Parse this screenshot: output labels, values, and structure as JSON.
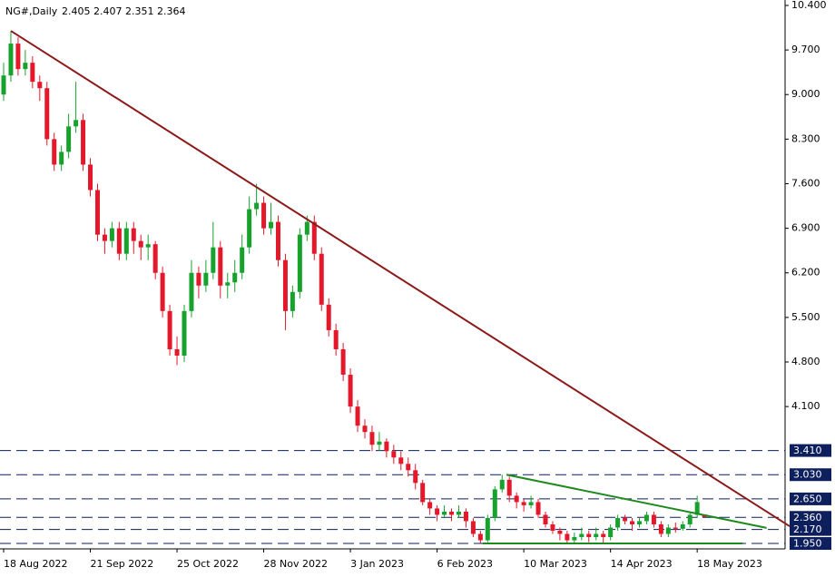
{
  "chart_data": {
    "type": "candlestick",
    "title": "NG#,Daily",
    "up_color": "#17a22e",
    "down_color": "#e3182a",
    "open": [
      9.0,
      9.3,
      9.8,
      9.4,
      9.5,
      9.2,
      9.1,
      8.3,
      7.9,
      8.1,
      8.5,
      8.6,
      7.9,
      7.5,
      6.8,
      6.7,
      6.9,
      6.5,
      6.9,
      6.7,
      6.6,
      6.65,
      6.2,
      5.6,
      5.0,
      4.9,
      5.6,
      6.2,
      6.0,
      6.2,
      6.6,
      6.0,
      6.05,
      6.2,
      6.6,
      7.2,
      7.3,
      6.9,
      7.0,
      6.4,
      5.6,
      5.9,
      6.8,
      7.0,
      6.5,
      5.7,
      5.3,
      5.0,
      4.6,
      4.1,
      3.8,
      3.7,
      3.5,
      3.55,
      3.4,
      3.3,
      3.2,
      3.1,
      2.9,
      2.6,
      2.5,
      2.4,
      2.45,
      2.4,
      2.45,
      2.3,
      2.1,
      2.0,
      2.35,
      2.8,
      2.95,
      2.7,
      2.6,
      2.55,
      2.6,
      2.4,
      2.25,
      2.15,
      2.1,
      2.0,
      2.05,
      2.1,
      2.05,
      2.1,
      2.05,
      2.2,
      2.35,
      2.3,
      2.25,
      2.3,
      2.4,
      2.25,
      2.1,
      2.2,
      2.18,
      2.25,
      2.4,
      2.405
    ],
    "high": [
      9.5,
      10.0,
      9.9,
      9.7,
      9.6,
      9.3,
      9.2,
      8.4,
      8.2,
      8.7,
      9.2,
      8.7,
      8.0,
      7.6,
      6.9,
      7.0,
      7.0,
      7.0,
      7.0,
      6.8,
      6.8,
      6.7,
      6.3,
      5.7,
      5.2,
      5.7,
      6.4,
      6.3,
      6.4,
      7.0,
      6.7,
      6.2,
      6.4,
      6.8,
      7.4,
      7.6,
      7.4,
      7.3,
      7.1,
      6.5,
      6.0,
      6.9,
      7.1,
      7.1,
      6.6,
      5.8,
      5.4,
      5.1,
      4.7,
      4.2,
      3.9,
      3.8,
      3.7,
      3.6,
      3.5,
      3.4,
      3.3,
      3.2,
      2.95,
      2.65,
      2.55,
      2.55,
      2.5,
      2.55,
      2.5,
      2.35,
      2.15,
      2.4,
      2.85,
      3.03,
      3.0,
      2.75,
      2.65,
      2.7,
      2.65,
      2.45,
      2.3,
      2.2,
      2.15,
      2.12,
      2.2,
      2.15,
      2.2,
      2.15,
      2.25,
      2.4,
      2.4,
      2.35,
      2.35,
      2.45,
      2.45,
      2.3,
      2.25,
      2.28,
      2.3,
      2.45,
      2.7,
      2.407
    ],
    "low": [
      8.9,
      9.2,
      9.3,
      9.3,
      9.1,
      8.9,
      8.2,
      7.8,
      7.8,
      8.0,
      8.4,
      7.8,
      7.4,
      6.7,
      6.5,
      6.6,
      6.4,
      6.4,
      6.5,
      6.4,
      6.4,
      6.1,
      5.5,
      4.9,
      4.75,
      4.8,
      5.5,
      5.8,
      5.9,
      6.1,
      5.8,
      5.8,
      5.9,
      6.1,
      6.5,
      7.1,
      6.8,
      6.8,
      6.3,
      5.3,
      5.5,
      5.8,
      6.7,
      6.4,
      5.6,
      5.2,
      4.9,
      4.5,
      4.0,
      3.7,
      3.6,
      3.4,
      3.4,
      3.3,
      3.2,
      3.1,
      3.0,
      2.8,
      2.55,
      2.4,
      2.3,
      2.35,
      2.3,
      2.35,
      2.2,
      2.05,
      1.95,
      1.97,
      2.3,
      2.75,
      2.6,
      2.5,
      2.45,
      2.5,
      2.35,
      2.2,
      2.1,
      2.0,
      1.95,
      1.96,
      2.0,
      1.97,
      2.0,
      1.96,
      2.0,
      2.15,
      2.25,
      2.15,
      2.2,
      2.25,
      2.2,
      2.05,
      2.05,
      2.12,
      2.15,
      2.2,
      2.35,
      2.351
    ],
    "close": [
      9.3,
      9.8,
      9.4,
      9.5,
      9.2,
      9.1,
      8.3,
      7.9,
      8.1,
      8.5,
      8.6,
      7.9,
      7.5,
      6.8,
      6.7,
      6.9,
      6.5,
      6.9,
      6.7,
      6.6,
      6.65,
      6.2,
      5.6,
      5.0,
      4.9,
      5.6,
      6.2,
      6.0,
      6.2,
      6.6,
      6.0,
      6.05,
      6.2,
      6.6,
      7.2,
      7.3,
      6.9,
      7.0,
      6.4,
      5.6,
      5.9,
      6.8,
      7.0,
      6.5,
      5.7,
      5.3,
      5.0,
      4.6,
      4.1,
      3.8,
      3.7,
      3.5,
      3.55,
      3.4,
      3.3,
      3.2,
      3.1,
      2.9,
      2.6,
      2.5,
      2.4,
      2.45,
      2.4,
      2.45,
      2.3,
      2.1,
      2.0,
      2.35,
      2.8,
      2.95,
      2.7,
      2.6,
      2.55,
      2.6,
      2.4,
      2.25,
      2.15,
      2.1,
      2.0,
      2.05,
      2.1,
      2.05,
      2.1,
      2.05,
      2.2,
      2.35,
      2.3,
      2.25,
      2.3,
      2.4,
      2.25,
      2.1,
      2.2,
      2.18,
      2.25,
      2.4,
      2.6,
      2.364
    ],
    "xticks": [
      {
        "value": 0,
        "label": "18 Aug 2022"
      },
      {
        "value": 12,
        "label": "21 Sep 2022"
      },
      {
        "value": 24,
        "label": "25 Oct 2022"
      },
      {
        "value": 36,
        "label": "28 Nov 2022"
      },
      {
        "value": 48,
        "label": "3 Jan 2023"
      },
      {
        "value": 60,
        "label": "6 Feb 2023"
      },
      {
        "value": 72,
        "label": "10 Mar 2023"
      },
      {
        "value": 84,
        "label": "14 Apr 2023"
      },
      {
        "value": 96,
        "label": "18 May 2023"
      }
    ],
    "ylim": [
      1.865,
      10.485
    ],
    "yticks": [
      {
        "value": 10.4,
        "label": "10.400"
      },
      {
        "value": 9.7,
        "label": "9.700"
      },
      {
        "value": 9.0,
        "label": "9.000"
      },
      {
        "value": 8.3,
        "label": "8.300"
      },
      {
        "value": 7.6,
        "label": "7.600"
      },
      {
        "value": 6.9,
        "label": "6.900"
      },
      {
        "value": 6.2,
        "label": "6.200"
      },
      {
        "value": 5.5,
        "label": "5.500"
      },
      {
        "value": 4.8,
        "label": "4.800"
      },
      {
        "value": 4.1,
        "label": "4.100"
      }
    ],
    "levels": [
      {
        "value": 3.41,
        "label": "3.410"
      },
      {
        "value": 3.03,
        "label": "3.030"
      },
      {
        "value": 2.65,
        "label": "2.650"
      },
      {
        "value": 2.36,
        "label": "2.360"
      },
      {
        "value": 2.17,
        "label": "2.170"
      },
      {
        "value": 1.95,
        "label": "1.950"
      }
    ],
    "level_color": "#0d1f5c",
    "trendlines": [
      {
        "color": "#8b1a1a",
        "from": [
          1,
          10.0
        ],
        "to": [
          108.8,
          2.22
        ]
      },
      {
        "color": "#1f8a1f",
        "from": [
          69.6,
          3.03
        ],
        "to": [
          105.6,
          2.195
        ]
      },
      {
        "color": "#1f8a1f",
        "from": [
          66.3,
          1.95
        ],
        "to": [
          102.3,
          1.95
        ]
      }
    ]
  }
}
